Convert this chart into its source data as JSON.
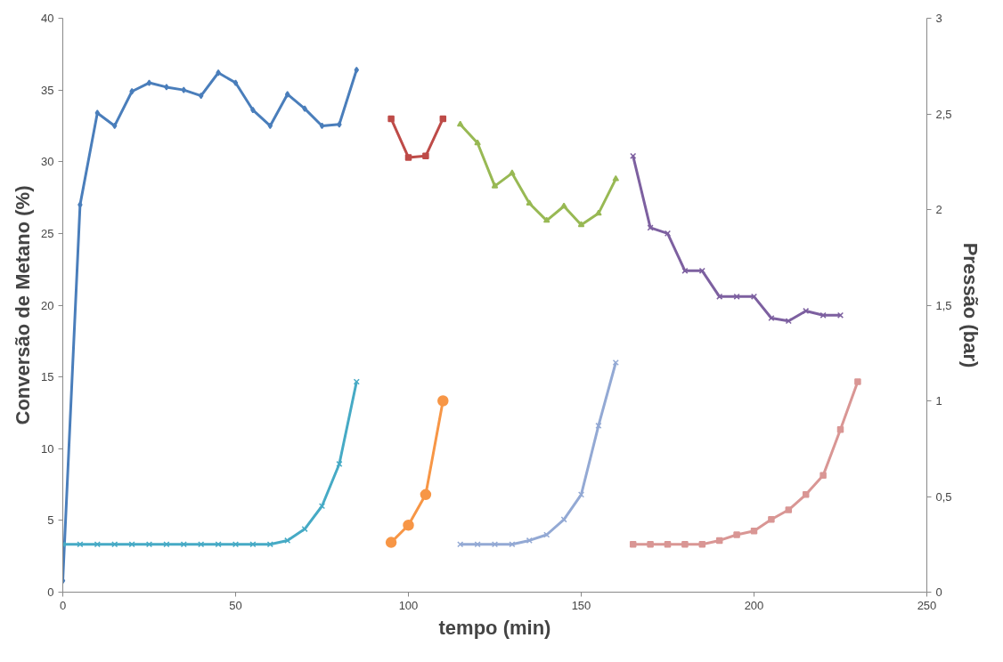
{
  "chart_data": {
    "type": "line",
    "xlabel": "tempo (min)",
    "ylabel": "Conversão de Metano (%)",
    "y2label": "Pressão (bar)",
    "xlim": [
      0,
      250
    ],
    "xticks": [
      0,
      50,
      100,
      150,
      200,
      250
    ],
    "ylim": [
      0,
      40
    ],
    "yticks": [
      0,
      5,
      10,
      15,
      20,
      25,
      30,
      35,
      40
    ],
    "y2lim": [
      0,
      3
    ],
    "y2ticks": [
      0,
      {
        "value": 0.5,
        "label": "0,5"
      },
      1,
      {
        "value": 1.5,
        "label": "1,5"
      },
      2,
      {
        "value": 2.5,
        "label": "2,5"
      },
      3
    ],
    "grid": false,
    "series": [
      {
        "color": "#4a7ebb",
        "marker": "diamond",
        "x": [
          0,
          5,
          10,
          15,
          20,
          25,
          30,
          35,
          40,
          45,
          50,
          55,
          60,
          65,
          70,
          75,
          80,
          85
        ],
        "values": [
          0.8,
          27.0,
          33.4,
          32.5,
          34.9,
          35.5,
          35.2,
          35.0,
          34.6,
          36.2,
          35.5,
          33.6,
          32.5,
          34.7,
          33.7,
          32.5,
          32.6,
          36.4
        ]
      },
      {
        "color": "#be4b48",
        "marker": "square",
        "x": [
          95,
          100,
          105,
          110
        ],
        "values": [
          33.0,
          30.3,
          30.4,
          33.0
        ]
      },
      {
        "color": "#98b954",
        "marker": "triangle",
        "x": [
          115,
          120,
          125,
          130,
          135,
          140,
          145,
          150,
          155,
          160
        ],
        "values": [
          32.6,
          31.3,
          28.3,
          29.2,
          27.1,
          25.9,
          26.9,
          25.6,
          26.4,
          28.8
        ]
      },
      {
        "color": "#7d60a0",
        "marker": "cross",
        "x": [
          165,
          170,
          175,
          180,
          185,
          190,
          195,
          200,
          205,
          210,
          215,
          220,
          225
        ],
        "values": [
          30.4,
          25.4,
          25.0,
          22.4,
          22.4,
          20.6,
          20.6,
          20.6,
          19.1,
          18.9,
          19.6,
          19.3,
          19.3
        ]
      },
      {
        "color": "#46aac5",
        "marker": "cross",
        "axis": "y2",
        "x": [
          0,
          5,
          10,
          15,
          20,
          25,
          30,
          35,
          40,
          45,
          50,
          55,
          60,
          65,
          70,
          75,
          80,
          85
        ],
        "values": [
          0.25,
          0.25,
          0.25,
          0.25,
          0.25,
          0.25,
          0.25,
          0.25,
          0.25,
          0.25,
          0.25,
          0.25,
          0.25,
          0.27,
          0.33,
          0.45,
          0.67,
          1.1
        ]
      },
      {
        "color": "#f79646",
        "marker": "circle",
        "axis": "y2",
        "x": [
          95,
          100,
          105,
          110
        ],
        "values": [
          0.26,
          0.35,
          0.51,
          1.0
        ]
      },
      {
        "color": "#93a9d4",
        "marker": "cross",
        "axis": "y2",
        "x": [
          115,
          120,
          125,
          130,
          135,
          140,
          145,
          150,
          155,
          160
        ],
        "values": [
          0.25,
          0.25,
          0.25,
          0.25,
          0.27,
          0.3,
          0.38,
          0.51,
          0.87,
          1.2
        ]
      },
      {
        "color": "#d99694",
        "marker": "square",
        "axis": "y2",
        "x": [
          165,
          170,
          175,
          180,
          185,
          190,
          195,
          200,
          205,
          210,
          215,
          220,
          225,
          230
        ],
        "values": [
          0.25,
          0.25,
          0.25,
          0.25,
          0.25,
          0.27,
          0.3,
          0.32,
          0.38,
          0.43,
          0.51,
          0.61,
          0.85,
          1.1
        ]
      }
    ]
  }
}
